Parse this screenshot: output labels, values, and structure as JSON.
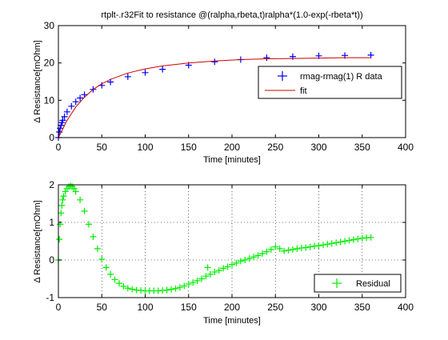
{
  "figure": {
    "background": "#ffffff"
  },
  "chart_data": [
    {
      "type": "scatter",
      "title": "rtplt-.r32Fit to resistance @(ralpha,rbeta,t)ralpha*(1.0-exp(-rbeta*t))",
      "xlabel": "Time [minutes]",
      "ylabel": "Δ Resistance[mOhm]",
      "xlim": [
        0,
        400
      ],
      "ylim": [
        0,
        30
      ],
      "xticks": [
        0,
        50,
        100,
        150,
        200,
        250,
        300,
        350,
        400
      ],
      "yticks": [
        0,
        10,
        20,
        30
      ],
      "grid": false,
      "legend_position": "right",
      "series": [
        {
          "name": "rmag-rmag(1) R data",
          "marker": "+",
          "color": "#0000ff",
          "x": [
            0,
            1,
            2,
            3,
            4,
            5,
            7,
            10,
            15,
            20,
            25,
            30,
            40,
            50,
            60,
            80,
            100,
            120,
            150,
            180,
            210,
            240,
            270,
            300,
            330,
            360
          ],
          "y": [
            0,
            1.5,
            2.5,
            3.3,
            4.0,
            4.6,
            5.6,
            6.9,
            8.4,
            9.6,
            10.6,
            11.5,
            12.9,
            14.0,
            14.9,
            16.3,
            17.4,
            18.3,
            19.4,
            20.3,
            20.9,
            21.4,
            21.7,
            21.9,
            22.0,
            22.1
          ]
        },
        {
          "name": "fit",
          "marker": "none",
          "color": "#cc0000",
          "x": [
            0,
            10,
            20,
            30,
            40,
            50,
            60,
            80,
            100,
            120,
            150,
            180,
            210,
            240,
            270,
            300,
            330,
            360
          ],
          "y": [
            0,
            4.6,
            8.2,
            10.8,
            12.9,
            14.4,
            15.6,
            17.3,
            18.4,
            19.2,
            20.0,
            20.5,
            20.9,
            21.1,
            21.2,
            21.3,
            21.4,
            21.4
          ]
        }
      ]
    },
    {
      "type": "scatter",
      "title": "",
      "xlabel": "Time [minutes]",
      "ylabel": "Δ Resistance[mOhm]",
      "xlim": [
        0,
        400
      ],
      "ylim": [
        -1,
        2
      ],
      "xticks": [
        0,
        50,
        100,
        150,
        200,
        250,
        300,
        350,
        400
      ],
      "yticks": [
        -1,
        0,
        1,
        2
      ],
      "grid": true,
      "legend_position": "bottom-right",
      "series": [
        {
          "name": "Residual",
          "marker": "+",
          "color": "#00ee00",
          "x": [
            0,
            1,
            2,
            3,
            4,
            5,
            6,
            8,
            10,
            12,
            14,
            16,
            18,
            20,
            25,
            30,
            35,
            40,
            45,
            50,
            55,
            60,
            65,
            70,
            75,
            80,
            85,
            90,
            95,
            100,
            105,
            110,
            115,
            120,
            125,
            130,
            135,
            140,
            145,
            150,
            155,
            160,
            165,
            170,
            175,
            180,
            185,
            190,
            195,
            200,
            205,
            210,
            215,
            220,
            225,
            230,
            235,
            240,
            245,
            250,
            255,
            260,
            265,
            270,
            275,
            280,
            285,
            290,
            295,
            300,
            305,
            310,
            315,
            320,
            325,
            330,
            335,
            340,
            345,
            350,
            355,
            360
          ],
          "y": [
            0,
            0.55,
            0.95,
            1.25,
            1.45,
            1.6,
            1.7,
            1.82,
            1.9,
            1.95,
            1.97,
            1.95,
            1.9,
            1.82,
            1.6,
            1.3,
            0.95,
            0.62,
            0.3,
            0.02,
            -0.2,
            -0.38,
            -0.52,
            -0.62,
            -0.7,
            -0.75,
            -0.78,
            -0.8,
            -0.81,
            -0.82,
            -0.82,
            -0.82,
            -0.82,
            -0.81,
            -0.8,
            -0.78,
            -0.76,
            -0.73,
            -0.69,
            -0.64,
            -0.6,
            -0.55,
            -0.5,
            -0.43,
            -0.38,
            -0.32,
            -0.28,
            -0.22,
            -0.18,
            -0.12,
            -0.08,
            -0.03,
            0.0,
            0.04,
            0.08,
            0.12,
            0.17,
            0.22,
            0.28,
            0.35,
            0.3,
            0.24,
            0.26,
            0.28,
            0.3,
            0.32,
            0.33,
            0.35,
            0.37,
            0.38,
            0.4,
            0.42,
            0.44,
            0.46,
            0.48,
            0.5,
            0.52,
            0.54,
            0.56,
            0.58,
            0.59,
            0.6
          ]
        }
      ],
      "annotations": [
        {
          "x": 172,
          "y": -0.2,
          "marker": "+",
          "color": "#00ee00"
        }
      ]
    }
  ]
}
